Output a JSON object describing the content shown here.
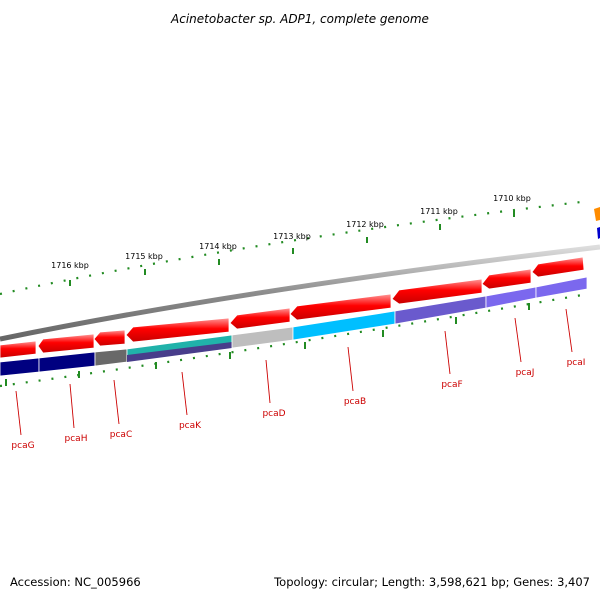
{
  "title": "Acinetobacter sp. ADP1, complete genome",
  "footer": {
    "accession": "Accession: NC_005966",
    "topology": "Topology: circular; Length: 3,598,621 bp; Genes: 3,407"
  },
  "scale_labels": [
    "1716 kbp",
    "1715 kbp",
    "1714 kbp",
    "1713 kbp",
    "1712 kbp",
    "1711 kbp",
    "1710 kbp"
  ],
  "gene_labels": [
    "pcaG",
    "pcaH",
    "pcaC",
    "pcaK",
    "pcaD",
    "pcaB",
    "pcaF",
    "pcaJ",
    "pcaI"
  ],
  "colors": {
    "backbone": "#8c8c8c",
    "forward_feature": "#ff0000",
    "tick": "#228b22",
    "gene_label": "#cc0000",
    "pcaG": "#000080",
    "pcaH": "#000080",
    "pcaC": "#696969",
    "pcaK": "#20b2aa",
    "pcaD": "#bebebe",
    "pcaB": "#00bfff",
    "pcaF": "#6a5acd",
    "pcaJ": "#7b68ee",
    "pcaI": "#7b68ee",
    "edge_orange": "#ff8c00",
    "edge_blue": "#0000cd"
  }
}
